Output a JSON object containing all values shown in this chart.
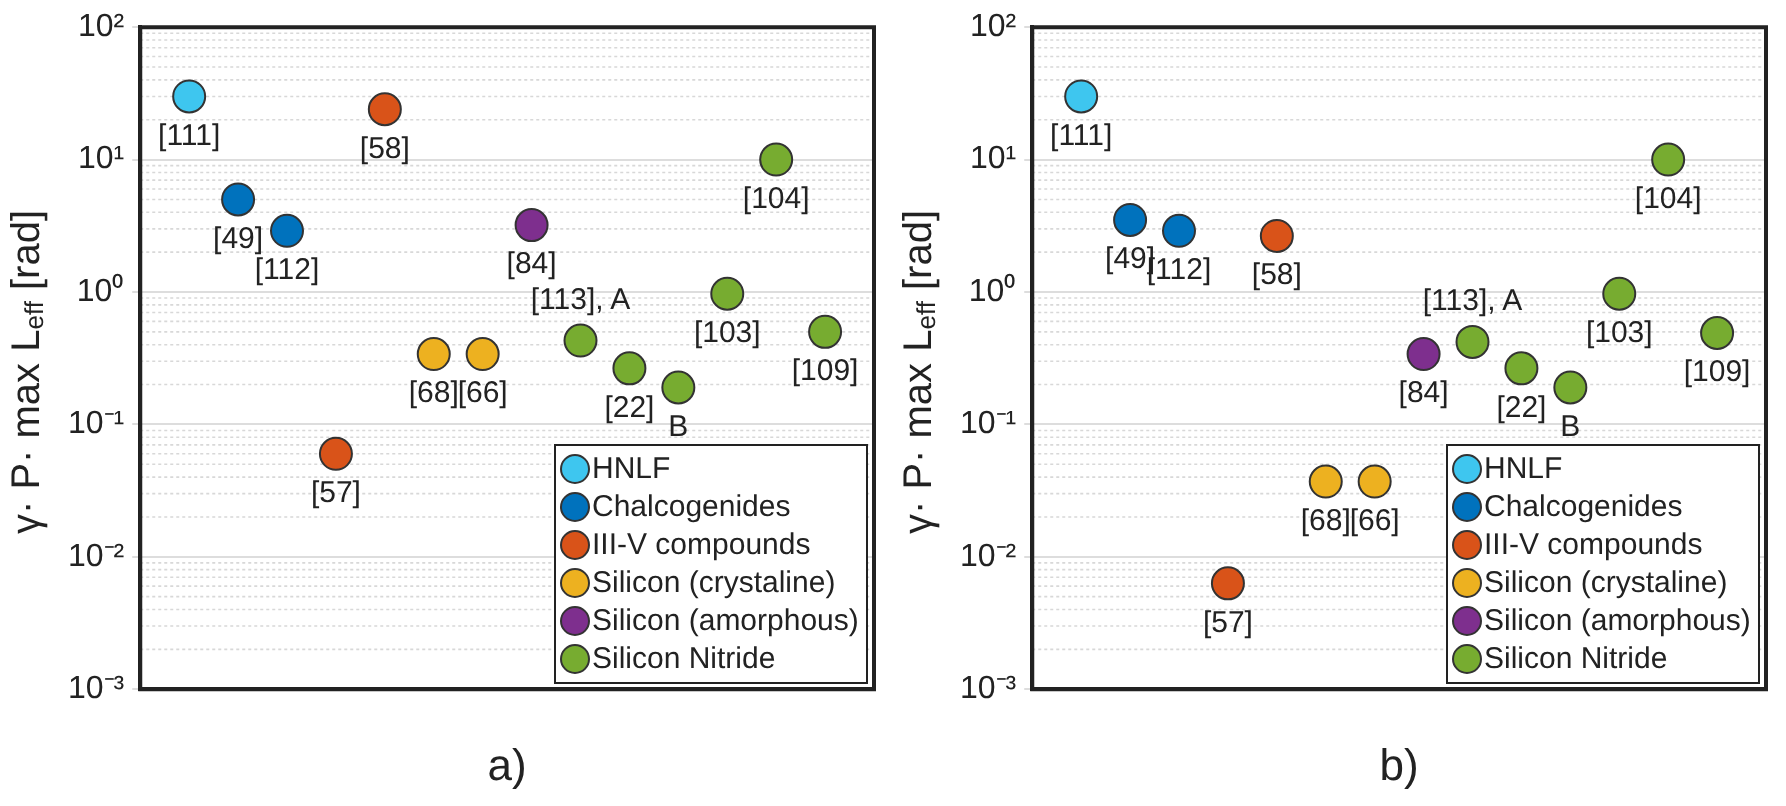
{
  "chart_data": [
    {
      "type": "scatter",
      "xlabel": "a)",
      "ylabel": "γ· P· max L$_{eff}$ [rad]",
      "categories": [
        null,
        null,
        null,
        null,
        null,
        null,
        null,
        null,
        null,
        null,
        null,
        null,
        null,
        null
      ],
      "ylim": [
        0.001,
        100
      ],
      "yticks": [
        {
          "value": 0.001,
          "label": "10⁻³"
        },
        {
          "value": 0.01,
          "label": "10⁻²"
        },
        {
          "value": 0.1,
          "label": "10⁻¹"
        },
        {
          "value": 1,
          "label": "10⁰"
        },
        {
          "value": 10,
          "label": "10¹"
        },
        {
          "value": 100,
          "label": "10²"
        }
      ],
      "log": true,
      "grid": "y",
      "legend": "bottom right",
      "marker": "circle",
      "series": [
        {
          "name": "HNLF",
          "color": "#3ec6ef",
          "values": [
            30,
            null,
            null,
            null,
            null,
            null,
            null,
            null,
            null,
            null,
            null,
            null,
            null,
            null
          ]
        },
        {
          "name": "Chalcogenides",
          "color": "#0072bd",
          "values": [
            null,
            5,
            2.9,
            null,
            null,
            null,
            null,
            null,
            null,
            null,
            null,
            null,
            null,
            null
          ]
        },
        {
          "name": "III-V compounds",
          "color": "#d95319",
          "values": [
            null,
            null,
            null,
            0.06,
            24,
            null,
            null,
            null,
            null,
            null,
            null,
            null,
            null,
            null
          ]
        },
        {
          "name": "Silicon (crystaline)",
          "color": "#edb120",
          "values": [
            null,
            null,
            null,
            null,
            null,
            0.34,
            0.34,
            null,
            null,
            null,
            null,
            null,
            null,
            null
          ]
        },
        {
          "name": "Silicon (amorphous)",
          "color": "#7e2f8e",
          "values": [
            null,
            null,
            null,
            null,
            null,
            null,
            null,
            3.2,
            null,
            null,
            null,
            null,
            null,
            null
          ]
        },
        {
          "name": "Silicon Nitride",
          "color": "#77ac30",
          "values": [
            null,
            null,
            null,
            null,
            null,
            null,
            null,
            null,
            0.43,
            0.265,
            0.19,
            0.97,
            10,
            0.5
          ]
        }
      ],
      "annotations": [
        {
          "text": "[111]",
          "y": 30
        },
        {
          "text": "[49]",
          "y": 5
        },
        {
          "text": "[112]",
          "y": 2.9
        },
        {
          "text": "[57]",
          "y": 0.06
        },
        {
          "text": "[58]",
          "y": 24
        },
        {
          "text": "[68]",
          "y": 0.34
        },
        {
          "text": "[66]",
          "y": 0.34
        },
        {
          "text": "[84]",
          "y": 3.2
        },
        {
          "text": "[113], A",
          "y": 0.43
        },
        {
          "text": "[22]",
          "y": 0.265
        },
        {
          "text": "B",
          "y": 0.19
        },
        {
          "text": "[103]",
          "y": 0.97
        },
        {
          "text": "[104]",
          "y": 10
        },
        {
          "text": "[109]",
          "y": 0.5
        }
      ]
    },
    {
      "type": "scatter",
      "xlabel": "b)",
      "ylabel": "γ· P· max L$_{eff}$ [rad]",
      "categories": [
        null,
        null,
        null,
        null,
        null,
        null,
        null,
        null,
        null,
        null,
        null,
        null,
        null,
        null
      ],
      "ylim": [
        0.001,
        100
      ],
      "yticks": [
        {
          "value": 0.001,
          "label": "10⁻³"
        },
        {
          "value": 0.01,
          "label": "10⁻²"
        },
        {
          "value": 0.1,
          "label": "10⁻¹"
        },
        {
          "value": 1,
          "label": "10⁰"
        },
        {
          "value": 10,
          "label": "10¹"
        },
        {
          "value": 100,
          "label": "10²"
        }
      ],
      "log": true,
      "grid": "y",
      "legend": "bottom right",
      "marker": "circle",
      "series": [
        {
          "name": "HNLF",
          "color": "#3ec6ef",
          "values": [
            30,
            null,
            null,
            null,
            null,
            null,
            null,
            null,
            null,
            null,
            null,
            null,
            null,
            null
          ]
        },
        {
          "name": "Chalcogenides",
          "color": "#0072bd",
          "values": [
            null,
            3.5,
            2.9,
            null,
            null,
            null,
            null,
            null,
            null,
            null,
            null,
            null,
            null,
            null
          ]
        },
        {
          "name": "III-V compounds",
          "color": "#d95319",
          "values": [
            null,
            null,
            null,
            0.0063,
            2.65,
            null,
            null,
            null,
            null,
            null,
            null,
            null,
            null,
            null
          ]
        },
        {
          "name": "Silicon (crystaline)",
          "color": "#edb120",
          "values": [
            null,
            null,
            null,
            null,
            null,
            0.037,
            0.037,
            null,
            null,
            null,
            null,
            null,
            null,
            null
          ]
        },
        {
          "name": "Silicon (amorphous)",
          "color": "#7e2f8e",
          "values": [
            null,
            null,
            null,
            null,
            null,
            null,
            null,
            0.34,
            null,
            null,
            null,
            null,
            null,
            null
          ]
        },
        {
          "name": "Silicon Nitride",
          "color": "#77ac30",
          "values": [
            null,
            null,
            null,
            null,
            null,
            null,
            null,
            null,
            0.42,
            0.265,
            0.19,
            0.97,
            10,
            0.49
          ]
        }
      ],
      "annotations": [
        {
          "text": "[111]",
          "y": 30
        },
        {
          "text": "[49]",
          "y": 3.5
        },
        {
          "text": "[112]",
          "y": 2.9
        },
        {
          "text": "[57]",
          "y": 0.0063
        },
        {
          "text": "[58]",
          "y": 2.65
        },
        {
          "text": "[68]",
          "y": 0.037
        },
        {
          "text": "[66]",
          "y": 0.037
        },
        {
          "text": "[84]",
          "y": 0.34
        },
        {
          "text": "[113], A",
          "y": 0.42
        },
        {
          "text": "[22]",
          "y": 0.265
        },
        {
          "text": "B",
          "y": 0.19
        },
        {
          "text": "[103]",
          "y": 0.97
        },
        {
          "text": "[104]",
          "y": 10
        },
        {
          "text": "[109]",
          "y": 0.49
        }
      ]
    }
  ]
}
